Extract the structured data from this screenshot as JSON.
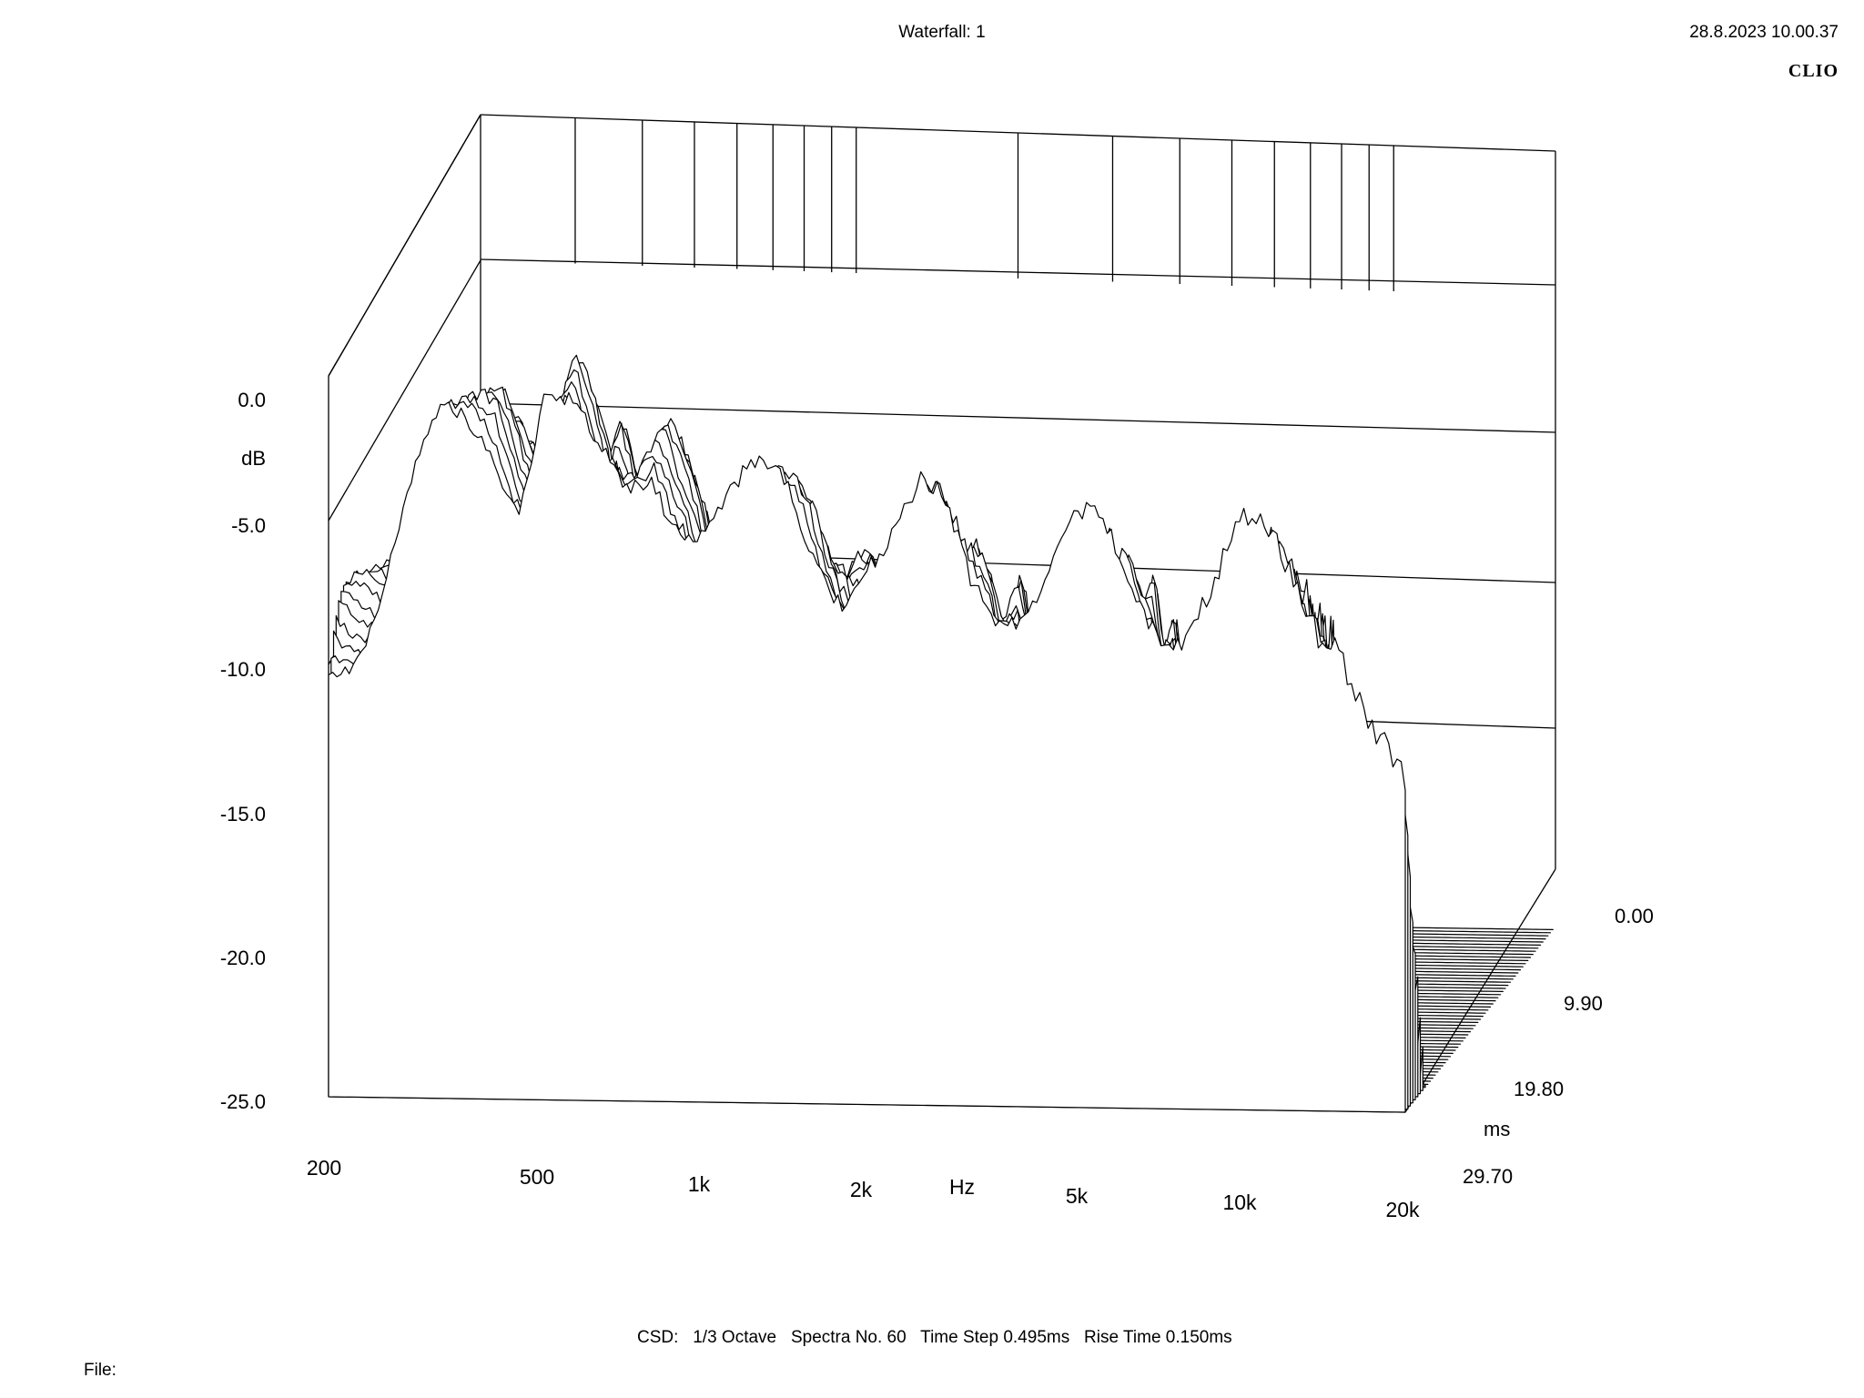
{
  "header": {
    "title": "Waterfall: 1",
    "datetime": "28.8.2023 10.00.37",
    "brand": "CLIO"
  },
  "footer": {
    "csd": "CSD:   1/3 Octave   Spectra No. 60   Time Step 0.495ms   Rise Time 0.150ms",
    "file_label": "File:"
  },
  "chart_data": {
    "type": "waterfall",
    "title": "Waterfall: 1",
    "ylabel": "dB",
    "xlabel": "Hz",
    "zlabel": "ms",
    "x_scale": "log",
    "xlim": [
      200,
      20000
    ],
    "ylim": [
      -25,
      0
    ],
    "zlim": [
      0,
      29.7
    ],
    "x_ticks": [
      "200",
      "500",
      "1k",
      "2k",
      "5k",
      "10k",
      "20k"
    ],
    "y_ticks": [
      "0.0",
      "-5.0",
      "-10.0",
      "-15.0",
      "-20.0",
      "-25.0"
    ],
    "z_ticks": [
      "0.00",
      "9.90",
      "19.80",
      "29.70"
    ],
    "spectra_count": 60,
    "time_step_ms": 0.495,
    "rise_time_ms": 0.15,
    "smoothing": "1/3 Octave",
    "first_slice": {
      "freq_hz": [
        200,
        250,
        315,
        400,
        450,
        500,
        560,
        630,
        710,
        800,
        900,
        1000,
        1100,
        1250,
        1400,
        1600,
        1800,
        2000,
        2250,
        2500,
        2800,
        3150,
        3550,
        4000,
        4500,
        5000,
        5600,
        6300,
        7100,
        8000,
        9000,
        10000,
        11200,
        12500,
        14000,
        15000,
        16000,
        18000,
        20000
      ],
      "level_db": [
        -9.0,
        -6.5,
        -3.5,
        -1.5,
        -2.5,
        0.5,
        -1.5,
        -4.5,
        -5.0,
        -2.5,
        -3.0,
        -4.0,
        -4.5,
        -5.0,
        -4.8,
        -5.3,
        -5.6,
        -5.0,
        -6.0,
        -5.5,
        -5.6,
        -6.4,
        -6.0,
        -6.6,
        -6.3,
        -6.4,
        -6.8,
        -6.6,
        -6.9,
        -6.6,
        -6.8,
        -6.6,
        -6.7,
        -6.6,
        -6.7,
        -6.9,
        -8.5,
        -12.5,
        -15.5
      ]
    },
    "grid": true,
    "line_color": "#000000"
  }
}
